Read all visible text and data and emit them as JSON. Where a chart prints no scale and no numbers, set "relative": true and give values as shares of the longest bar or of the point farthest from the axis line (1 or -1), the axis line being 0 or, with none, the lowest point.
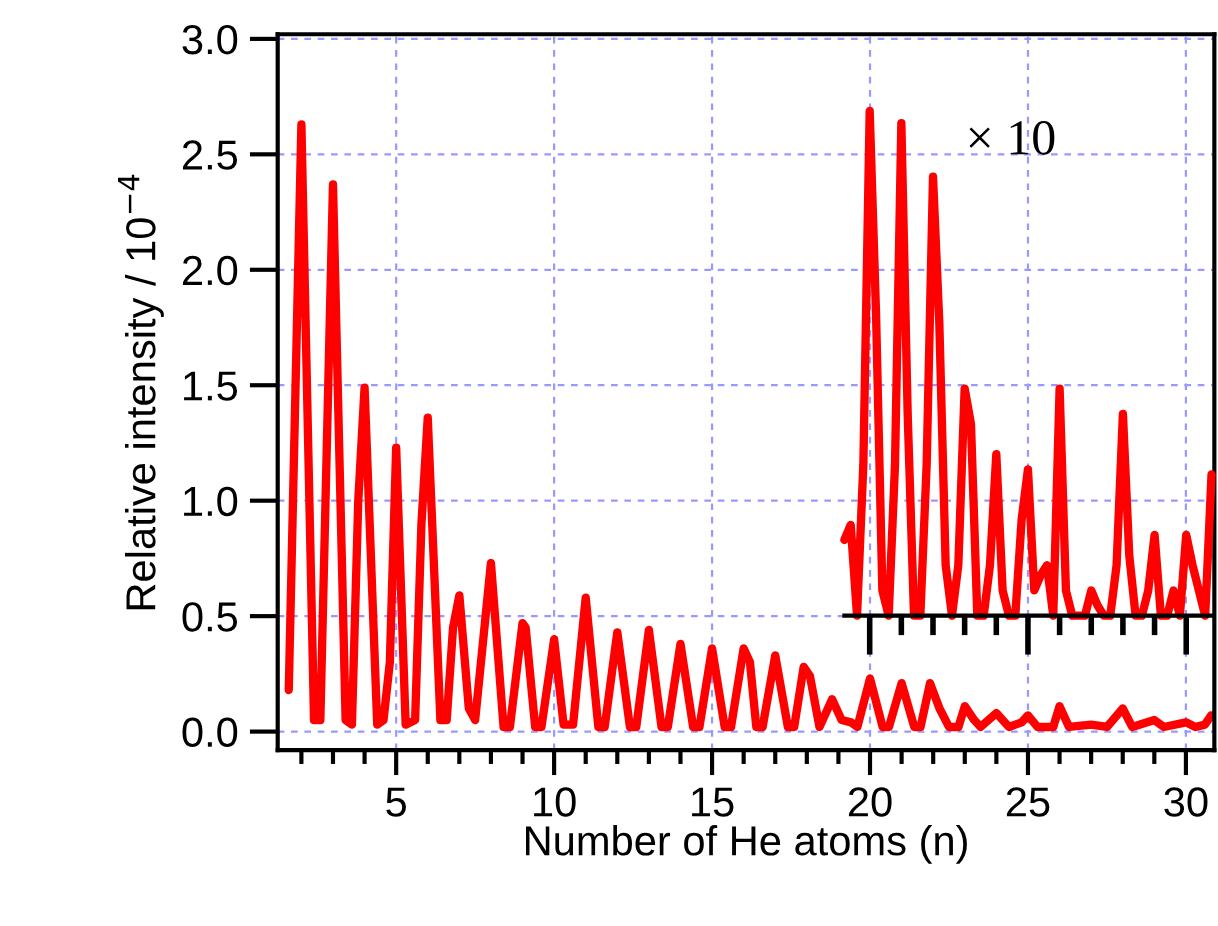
{
  "chart_data": [
    {
      "type": "line",
      "xlabel": "Number of He atoms (n)",
      "ylabel": "Relative intensity / 10$^{−4}$",
      "xlim": [
        1.25,
        30.9
      ],
      "ylim": [
        -0.08,
        3.02
      ],
      "xticks": [
        {
          "value": 2,
          "label": null
        },
        {
          "value": 3,
          "label": null
        },
        {
          "value": 4,
          "label": null
        },
        5,
        {
          "value": 6,
          "label": null
        },
        {
          "value": 7,
          "label": null
        },
        {
          "value": 8,
          "label": null
        },
        {
          "value": 9,
          "label": null
        },
        10,
        {
          "value": 11,
          "label": null
        },
        {
          "value": 12,
          "label": null
        },
        {
          "value": 13,
          "label": null
        },
        {
          "value": 14,
          "label": null
        },
        15,
        {
          "value": 16,
          "label": null
        },
        {
          "value": 17,
          "label": null
        },
        {
          "value": 18,
          "label": null
        },
        {
          "value": 19,
          "label": null
        },
        20,
        {
          "value": 21,
          "label": null
        },
        {
          "value": 22,
          "label": null
        },
        {
          "value": 23,
          "label": null
        },
        {
          "value": 24,
          "label": null
        },
        25,
        {
          "value": 26,
          "label": null
        },
        {
          "value": 27,
          "label": null
        },
        {
          "value": 28,
          "label": null
        },
        {
          "value": 29,
          "label": null
        },
        30
      ],
      "yticks": [
        {
          "value": 0,
          "label": "0.0"
        },
        0.5,
        {
          "value": 1,
          "label": "1.0"
        },
        1.5,
        {
          "value": 2,
          "label": "2.0"
        },
        2.5,
        {
          "value": 3,
          "label": "3.0"
        }
      ],
      "grid": true,
      "marker": "none",
      "line_style": "solid",
      "series": [
        {
          "color": "#ff0000",
          "x": [
            1.6,
            2.0,
            2.4,
            2.6,
            2.85,
            3.0,
            3.4,
            3.6,
            3.8,
            4.0,
            4.4,
            4.6,
            4.8,
            5.0,
            5.3,
            5.6,
            5.8,
            6.0,
            6.4,
            6.6,
            6.8,
            7.0,
            7.3,
            7.5,
            8.0,
            8.4,
            8.6,
            9.0,
            9.1,
            9.4,
            9.6,
            10.0,
            10.3,
            10.6,
            11.0,
            11.4,
            11.6,
            12.0,
            12.4,
            12.6,
            13.0,
            13.4,
            13.6,
            14.0,
            14.4,
            14.6,
            15.0,
            15.4,
            15.6,
            16.0,
            16.2,
            16.4,
            16.6,
            17.0,
            17.4,
            17.6,
            17.9,
            18.1,
            18.4,
            18.8,
            19.1,
            19.4,
            19.6,
            20.0,
            20.4,
            20.6,
            21.0,
            21.4,
            21.6,
            21.9,
            22.2,
            22.5,
            22.8,
            23.0,
            23.3,
            23.5,
            24.0,
            24.4,
            24.8,
            25.0,
            25.3,
            25.8,
            26.0,
            26.3,
            27.0,
            27.5,
            28.0,
            28.3,
            29.0,
            29.3,
            30.0,
            30.3,
            30.6,
            30.8
          ],
          "values": [
            0.18,
            2.63,
            0.05,
            0.05,
            1.5,
            2.37,
            0.05,
            0.03,
            1.0,
            1.49,
            0.03,
            0.05,
            0.3,
            1.23,
            0.03,
            0.05,
            0.9,
            1.36,
            0.05,
            0.05,
            0.45,
            0.59,
            0.1,
            0.05,
            0.73,
            0.02,
            0.02,
            0.47,
            0.45,
            0.02,
            0.02,
            0.4,
            0.03,
            0.03,
            0.58,
            0.02,
            0.02,
            0.43,
            0.02,
            0.02,
            0.44,
            0.02,
            0.02,
            0.38,
            0.02,
            0.02,
            0.36,
            0.02,
            0.02,
            0.36,
            0.3,
            0.02,
            0.02,
            0.33,
            0.02,
            0.02,
            0.28,
            0.24,
            0.02,
            0.14,
            0.05,
            0.04,
            0.02,
            0.23,
            0.02,
            0.02,
            0.21,
            0.02,
            0.02,
            0.21,
            0.1,
            0.02,
            0.02,
            0.11,
            0.05,
            0.02,
            0.08,
            0.02,
            0.04,
            0.07,
            0.02,
            0.02,
            0.11,
            0.02,
            0.03,
            0.02,
            0.1,
            0.02,
            0.05,
            0.02,
            0.04,
            0.02,
            0.03,
            0.07
          ]
        }
      ]
    },
    {
      "type": "line",
      "relative": true,
      "categories": [
        null,
        null,
        null,
        null,
        null,
        null,
        null,
        null,
        null,
        null,
        null,
        null,
        null,
        null,
        null,
        null,
        null,
        null,
        null,
        null,
        null,
        null,
        null,
        null,
        null,
        null,
        null,
        null,
        null,
        null,
        null,
        null,
        null,
        null,
        null,
        null,
        null,
        null,
        null,
        null,
        null,
        null,
        null,
        null,
        null,
        null,
        null,
        null,
        null,
        null,
        null,
        null,
        null,
        null,
        null,
        null,
        null,
        null,
        null
      ],
      "annotations": [
        "× 10"
      ],
      "marker": "none",
      "line_style": "solid",
      "series": [
        {
          "color": "#ff0000",
          "values": [
            0.15,
            0.18,
            0,
            0.3,
            1,
            0.6,
            0.05,
            0,
            0.3,
            0.976,
            0.4,
            0,
            0,
            0.3,
            0.87,
            0.58,
            0.1,
            0,
            0.1,
            0.45,
            0.38,
            0,
            0,
            0.1,
            0.32,
            0.05,
            0,
            0,
            0.19,
            0.29,
            0.05,
            0.08,
            0.1,
            0,
            0.45,
            0.05,
            0,
            0,
            0,
            0.05,
            0.02,
            0,
            0,
            0.1,
            0.4,
            0.12,
            0,
            0,
            0.05,
            0.16,
            0,
            0,
            0.05,
            0,
            0.16,
            0.1,
            0.05,
            0,
            0.28
          ]
        }
      ]
    }
  ]
}
